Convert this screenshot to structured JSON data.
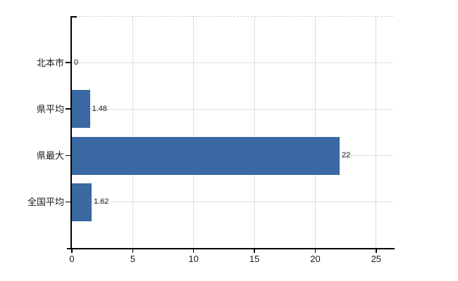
{
  "chart_data": {
    "type": "bar",
    "orientation": "horizontal",
    "title": "",
    "xlabel": "",
    "ylabel": "",
    "categories": [
      "北本市",
      "県平均",
      "県最大",
      "全国平均"
    ],
    "values": [
      0,
      1.48,
      22,
      1.62
    ],
    "value_labels": [
      "0",
      "1.48",
      "22",
      "1.62"
    ],
    "x_ticks": [
      0,
      5,
      10,
      15,
      20,
      25
    ],
    "xlim": [
      0,
      26.4
    ],
    "grid": true,
    "legend": false,
    "colors": {
      "bar": "#3a69a3",
      "grid": "#dbdfdb",
      "axis": "#000000",
      "text": "#1a1a1a",
      "plot_border": "#d4d4d4",
      "background": "#ffffff"
    }
  }
}
